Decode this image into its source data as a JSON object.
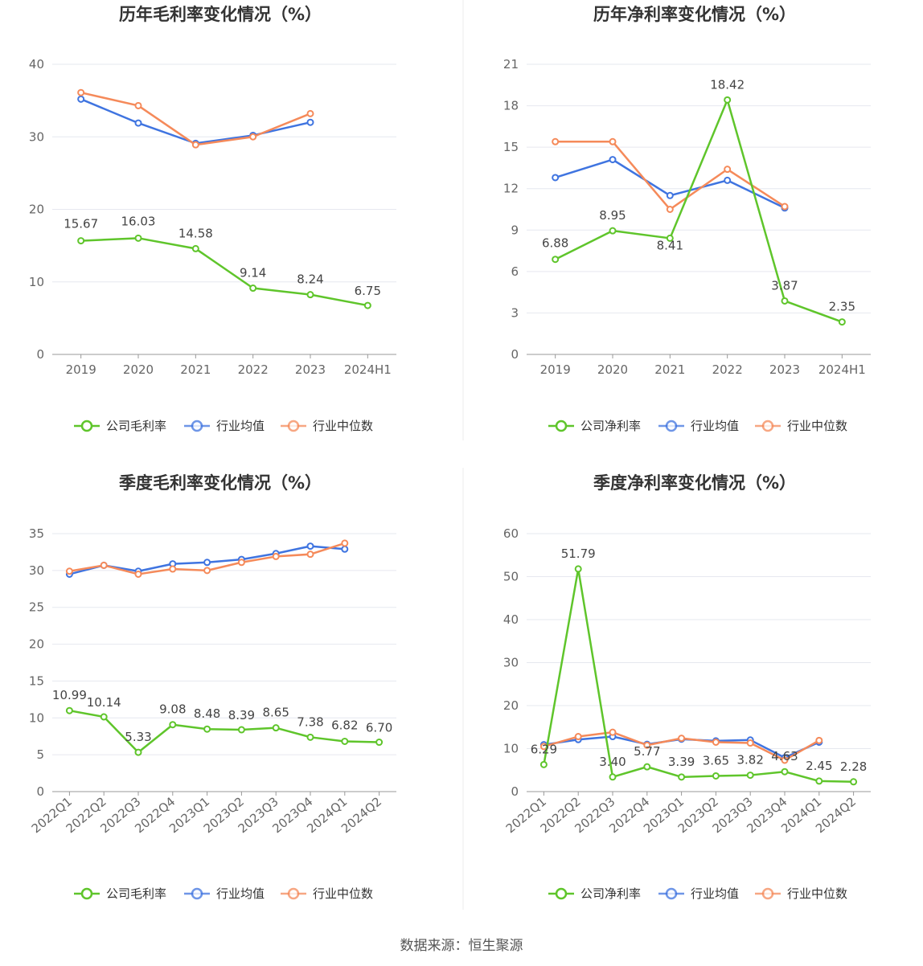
{
  "colors": {
    "company": "#5fc52b",
    "avg": "#3f74e0",
    "median": "#f58a5a",
    "grid": "#e6e8ef",
    "axis": "#999999"
  },
  "legend": {
    "avg": "行业均值",
    "median": "行业中位数"
  },
  "source": "数据来源：恒生聚源",
  "chart_data": [
    {
      "type": "line",
      "title": "历年毛利率变化情况（%）",
      "categories": [
        "2019",
        "2020",
        "2021",
        "2022",
        "2023",
        "2024H1"
      ],
      "ylim": [
        0,
        40
      ],
      "yticks": [
        0,
        10,
        20,
        30,
        40
      ],
      "rotate_x": false,
      "series": [
        {
          "name": "公司毛利率",
          "key": "company",
          "values": [
            15.67,
            16.03,
            14.58,
            9.14,
            8.24,
            6.75
          ],
          "labels": [
            "15.67",
            "16.03",
            "14.58",
            "9.14",
            "8.24",
            "6.75"
          ]
        },
        {
          "name": "行业均值",
          "key": "avg",
          "values": [
            35.2,
            31.9,
            29.1,
            30.2,
            32.0,
            null
          ]
        },
        {
          "name": "行业中位数",
          "key": "median",
          "values": [
            36.1,
            34.3,
            28.9,
            30.0,
            33.2,
            null
          ]
        }
      ]
    },
    {
      "type": "line",
      "title": "历年净利率变化情况（%）",
      "categories": [
        "2019",
        "2020",
        "2021",
        "2022",
        "2023",
        "2024H1"
      ],
      "ylim": [
        0,
        21
      ],
      "yticks": [
        0,
        3,
        6,
        9,
        12,
        15,
        18,
        21
      ],
      "rotate_x": false,
      "series": [
        {
          "name": "公司净利率",
          "key": "company",
          "values": [
            6.88,
            8.95,
            8.41,
            18.42,
            3.87,
            2.35
          ],
          "labels": [
            "6.88",
            "8.95",
            "8.41",
            "18.42",
            "3.87",
            "2.35"
          ]
        },
        {
          "name": "行业均值",
          "key": "avg",
          "values": [
            12.8,
            14.1,
            11.5,
            12.6,
            10.6,
            null
          ]
        },
        {
          "name": "行业中位数",
          "key": "median",
          "values": [
            15.4,
            15.4,
            10.5,
            13.4,
            10.7,
            null
          ]
        }
      ]
    },
    {
      "type": "line",
      "title": "季度毛利率变化情况（%）",
      "categories": [
        "2022Q1",
        "2022Q2",
        "2022Q3",
        "2022Q4",
        "2023Q1",
        "2023Q2",
        "2023Q3",
        "2023Q4",
        "2024Q1",
        "2024Q2"
      ],
      "ylim": [
        0,
        35
      ],
      "yticks": [
        0,
        5,
        10,
        15,
        20,
        25,
        30,
        35
      ],
      "rotate_x": true,
      "series": [
        {
          "name": "公司毛利率",
          "key": "company",
          "values": [
            10.99,
            10.14,
            5.33,
            9.08,
            8.48,
            8.39,
            8.65,
            7.38,
            6.82,
            6.7
          ],
          "labels": [
            "10.99",
            "10.14",
            "5.33",
            "9.08",
            "8.48",
            "8.39",
            "8.65",
            "7.38",
            "6.82",
            "6.70"
          ]
        },
        {
          "name": "行业均值",
          "key": "avg",
          "values": [
            29.5,
            30.7,
            29.9,
            30.9,
            31.1,
            31.5,
            32.3,
            33.3,
            32.9,
            null
          ]
        },
        {
          "name": "行业中位数",
          "key": "median",
          "values": [
            29.9,
            30.7,
            29.5,
            30.2,
            30.0,
            31.1,
            31.9,
            32.2,
            33.7,
            null
          ]
        }
      ]
    },
    {
      "type": "line",
      "title": "季度净利率变化情况（%）",
      "categories": [
        "2022Q1",
        "2022Q2",
        "2022Q3",
        "2022Q4",
        "2023Q1",
        "2023Q2",
        "2023Q3",
        "2023Q4",
        "2024Q1",
        "2024Q2"
      ],
      "ylim": [
        0,
        60
      ],
      "yticks": [
        0,
        10,
        20,
        30,
        40,
        50,
        60
      ],
      "rotate_x": true,
      "series": [
        {
          "name": "公司净利率",
          "key": "company",
          "values": [
            6.29,
            51.79,
            3.4,
            5.77,
            3.39,
            3.65,
            3.82,
            4.63,
            2.45,
            2.28
          ],
          "labels": [
            "6.29",
            "51.79",
            "3.40",
            "5.77",
            "3.39",
            "3.65",
            "3.82",
            "4.63",
            "2.45",
            "2.28"
          ]
        },
        {
          "name": "行业均值",
          "key": "avg",
          "values": [
            10.9,
            12.1,
            12.8,
            11.0,
            12.2,
            11.8,
            12.0,
            7.9,
            11.5,
            null
          ]
        },
        {
          "name": "行业中位数",
          "key": "median",
          "values": [
            10.5,
            12.8,
            13.8,
            10.8,
            12.4,
            11.5,
            11.3,
            7.3,
            11.9,
            null
          ]
        }
      ]
    }
  ]
}
